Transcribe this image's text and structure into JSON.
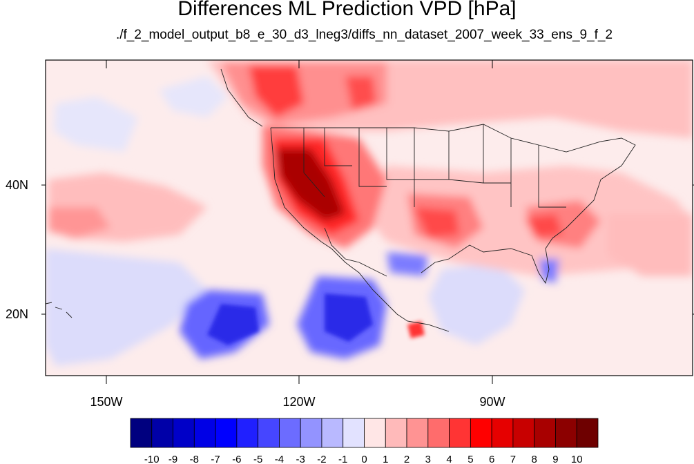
{
  "title": "Differences ML Prediction VPD [hPa]",
  "subtitle": "./f_2_model_output_b8_e_30_d3_lneg3/diffs_nn_dataset_2007_week_33_ens_9_f_2",
  "axes": {
    "lon_labels": [
      "150W",
      "120W",
      "90W"
    ],
    "lat_labels": [
      "40N",
      "20N"
    ]
  },
  "colorbar": {
    "labels": [
      "-10",
      "-9",
      "-8",
      "-7",
      "-6",
      "-5",
      "-4",
      "-3",
      "-2",
      "-1",
      "0",
      "1",
      "2",
      "3",
      "4",
      "5",
      "6",
      "7",
      "8",
      "9",
      "10"
    ],
    "colors": [
      "#00007f",
      "#0000a8",
      "#0000c8",
      "#0000e6",
      "#0000ff",
      "#2020ff",
      "#4646ff",
      "#6c6cff",
      "#9393ff",
      "#b9b9ff",
      "#e2e2ff",
      "#ffe6e6",
      "#ffbaba",
      "#ff9393",
      "#ff6c6c",
      "#ff3434",
      "#ff0000",
      "#e60000",
      "#c80000",
      "#a80000",
      "#8c0000",
      "#6e0000"
    ]
  }
}
